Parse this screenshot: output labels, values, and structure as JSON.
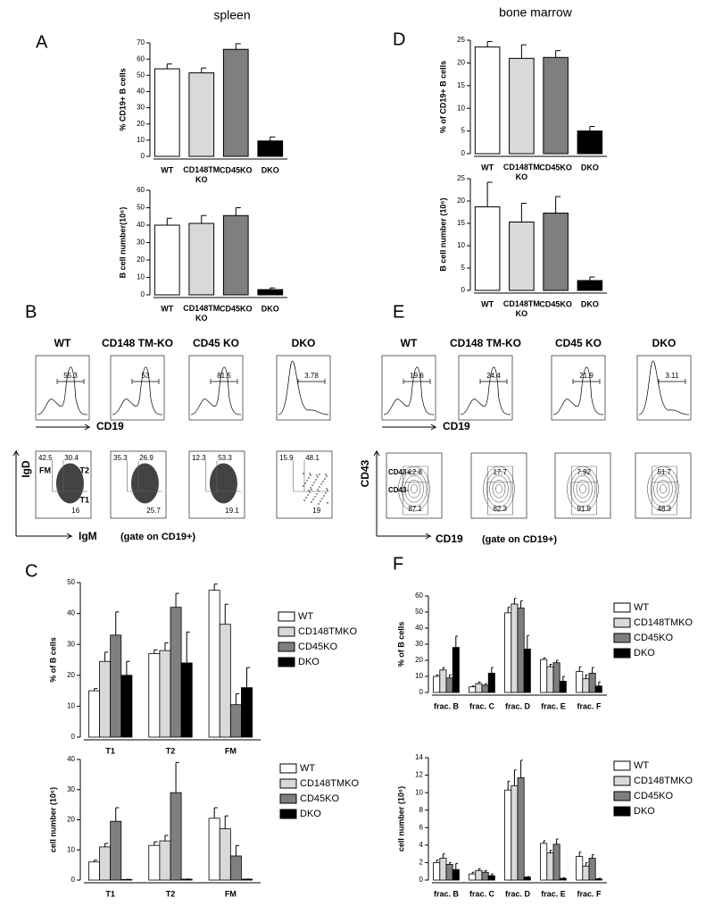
{
  "panels": {
    "letters": [
      "A",
      "B",
      "C",
      "D",
      "E",
      "F"
    ]
  },
  "chart_data": [
    {
      "type": "bar",
      "title": "spleen",
      "ylabel": "% CD19+ B cells",
      "categories": [
        "WT",
        "CD148TM KO",
        "CD45KO",
        "DKO"
      ],
      "values": [
        54,
        51.5,
        66,
        9.5
      ],
      "errors": [
        3,
        3,
        3.5,
        2.5
      ],
      "colors": [
        "#ffffff",
        "#d9d9d9",
        "#7f7f7f",
        "#000000"
      ],
      "ylim": [
        0,
        70
      ],
      "yticks": [
        0,
        10,
        20,
        30,
        40,
        50,
        60,
        70
      ]
    },
    {
      "type": "bar",
      "ylabel": "B cell number(10⁶)",
      "categories": [
        "WT",
        "CD148TM KO",
        "CD45KO",
        "DKO"
      ],
      "values": [
        40,
        41,
        45.5,
        3
      ],
      "errors": [
        4,
        4.5,
        4.5,
        1
      ],
      "colors": [
        "#ffffff",
        "#d9d9d9",
        "#7f7f7f",
        "#000000"
      ],
      "ylim": [
        0,
        60
      ],
      "yticks": [
        0,
        10,
        20,
        30,
        40,
        50,
        60
      ]
    },
    {
      "type": "bar",
      "title": "bone marrow",
      "ylabel": "% of CD19+ B cells",
      "categories": [
        "WT",
        "CD148TM KO",
        "CD45KO",
        "DKO"
      ],
      "values": [
        23.5,
        21,
        21.2,
        5
      ],
      "errors": [
        1.2,
        3,
        1.5,
        1
      ],
      "colors": [
        "#ffffff",
        "#d9d9d9",
        "#7f7f7f",
        "#000000"
      ],
      "ylim": [
        0,
        25
      ],
      "yticks": [
        0,
        5,
        10,
        15,
        20,
        25
      ]
    },
    {
      "type": "bar",
      "ylabel": "B cell number (10⁶)",
      "categories": [
        "WT",
        "CD148TM KO",
        "CD45KO",
        "DKO"
      ],
      "values": [
        18.7,
        15.3,
        17.3,
        2.2
      ],
      "errors": [
        5.5,
        4.2,
        3.7,
        0.8
      ],
      "colors": [
        "#ffffff",
        "#d9d9d9",
        "#7f7f7f",
        "#000000"
      ],
      "ylim": [
        0,
        25
      ],
      "yticks": [
        0,
        5,
        10,
        15,
        20,
        25
      ]
    },
    {
      "type": "grouped_bar",
      "ylabel": "% of B cells",
      "categories": [
        "T1",
        "T2",
        "FM"
      ],
      "ylim": [
        0,
        50
      ],
      "yticks": [
        0,
        10,
        20,
        30,
        40,
        50
      ],
      "series": [
        {
          "name": "WT",
          "color": "#ffffff",
          "values": [
            15,
            27,
            47.5
          ],
          "errors": [
            0.7,
            1.2,
            2
          ]
        },
        {
          "name": "CD148TMKO",
          "color": "#d9d9d9",
          "values": [
            24.5,
            28,
            36.5
          ],
          "errors": [
            3,
            2.5,
            6.5
          ]
        },
        {
          "name": "CD45KO",
          "color": "#7f7f7f",
          "values": [
            33,
            42,
            10.5
          ],
          "errors": [
            7.5,
            4.5,
            3.5
          ]
        },
        {
          "name": "DKO",
          "color": "#000000",
          "values": [
            20,
            24,
            16
          ],
          "errors": [
            4.5,
            10,
            6.5
          ]
        }
      ]
    },
    {
      "type": "grouped_bar",
      "ylabel": "cell number (10⁶)",
      "categories": [
        "T1",
        "T2",
        "FM"
      ],
      "ylim": [
        0,
        40
      ],
      "yticks": [
        0,
        10,
        20,
        30,
        40
      ],
      "series": [
        {
          "name": "WT",
          "color": "#ffffff",
          "values": [
            6,
            11.5,
            20.5
          ],
          "errors": [
            0.6,
            1.2,
            3.5
          ]
        },
        {
          "name": "CD148TMKO",
          "color": "#d9d9d9",
          "values": [
            11,
            13,
            17
          ],
          "errors": [
            1.2,
            1.8,
            4.3
          ]
        },
        {
          "name": "CD45KO",
          "color": "#7f7f7f",
          "values": [
            19.5,
            29,
            8
          ],
          "errors": [
            4.5,
            10,
            3.5
          ]
        },
        {
          "name": "DKO",
          "color": "#000000",
          "values": [
            0.2,
            0.3,
            0.3
          ],
          "errors": [
            0.05,
            0.05,
            0.05
          ]
        }
      ]
    },
    {
      "type": "grouped_bar",
      "ylabel": "% of B cells",
      "categories": [
        "frac. B",
        "frac. C",
        "frac. D",
        "frac. E",
        "frac. F"
      ],
      "ylim": [
        0,
        60
      ],
      "yticks": [
        0,
        10,
        20,
        30,
        40,
        50,
        60
      ],
      "series": [
        {
          "name": "WT",
          "color": "#ffffff",
          "values": [
            10,
            3.5,
            49.5,
            20.5,
            13
          ],
          "errors": [
            1,
            0.5,
            3.5,
            1,
            3
          ]
        },
        {
          "name": "CD148TMKO",
          "color": "#d9d9d9",
          "values": [
            14,
            5.5,
            55,
            16,
            8.5
          ],
          "errors": [
            1.5,
            1,
            3.5,
            1.5,
            2.5
          ]
        },
        {
          "name": "CD45KO",
          "color": "#7f7f7f",
          "values": [
            9,
            4.5,
            52.5,
            18.5,
            12
          ],
          "errors": [
            2,
            1,
            4.5,
            1.5,
            3.5
          ]
        },
        {
          "name": "DKO",
          "color": "#000000",
          "values": [
            28,
            12,
            27,
            7,
            4
          ],
          "errors": [
            7,
            3.5,
            8.5,
            3,
            2.5
          ]
        }
      ]
    },
    {
      "type": "grouped_bar",
      "ylabel": "cell number (10⁶)",
      "categories": [
        "frac. B",
        "frac. C",
        "frac. D",
        "frac. E",
        "frac. F"
      ],
      "ylim": [
        0,
        14
      ],
      "yticks": [
        0,
        2,
        4,
        6,
        8,
        10,
        12,
        14
      ],
      "series": [
        {
          "name": "WT",
          "color": "#ffffff",
          "values": [
            2,
            0.7,
            10.3,
            4.2,
            2.7
          ],
          "errors": [
            0.3,
            0.2,
            1,
            0.3,
            0.5
          ]
        },
        {
          "name": "CD148TMKO",
          "color": "#d9d9d9",
          "values": [
            2.5,
            1.1,
            10.8,
            3.1,
            1.6
          ],
          "errors": [
            0.5,
            0.2,
            1.8,
            0.3,
            0.4
          ]
        },
        {
          "name": "CD45KO",
          "color": "#7f7f7f",
          "values": [
            1.8,
            0.9,
            11.7,
            4.1,
            2.5
          ],
          "errors": [
            0.2,
            0.2,
            2,
            0.6,
            0.4
          ]
        },
        {
          "name": "DKO",
          "color": "#000000",
          "values": [
            1.2,
            0.5,
            0.35,
            0.2,
            0.15
          ],
          "errors": [
            0.7,
            0.2,
            0.05,
            0.05,
            0.05
          ]
        }
      ]
    }
  ],
  "flow": {
    "B": {
      "headers": [
        "WT",
        "CD148 TM-KO",
        "CD45 KO",
        "DKO"
      ],
      "hist_gates": [
        55.3,
        53,
        81.5,
        3.78
      ],
      "hist_axis": "CD19",
      "dot_values": [
        [
          42.5,
          30.4,
          16
        ],
        [
          35.3,
          26.9,
          25.7
        ],
        [
          12.3,
          53.3,
          19.1
        ],
        [
          15.9,
          48.1,
          19
        ]
      ],
      "dot_labels": [
        "FM",
        "T2",
        "T1"
      ],
      "dot_y_axis": "IgD",
      "dot_x_axis": "IgM",
      "gate_note": "(gate on CD19+)"
    },
    "E": {
      "headers": [
        "WT",
        "CD148 TM-KO",
        "CD45 KO",
        "DKO"
      ],
      "hist_gates": [
        19.6,
        24.4,
        21.9,
        3.11
      ],
      "hist_axis": "CD19",
      "contour_values": [
        [
          12.8,
          87.1
        ],
        [
          17.7,
          82.3
        ],
        [
          7.92,
          91.9
        ],
        [
          51.7,
          48.3
        ]
      ],
      "contour_labels": [
        "CD43+",
        "CD43-"
      ],
      "contour_y_axis": "CD43",
      "contour_x_axis": "CD19",
      "gate_note": "(gate on CD19+)"
    }
  }
}
